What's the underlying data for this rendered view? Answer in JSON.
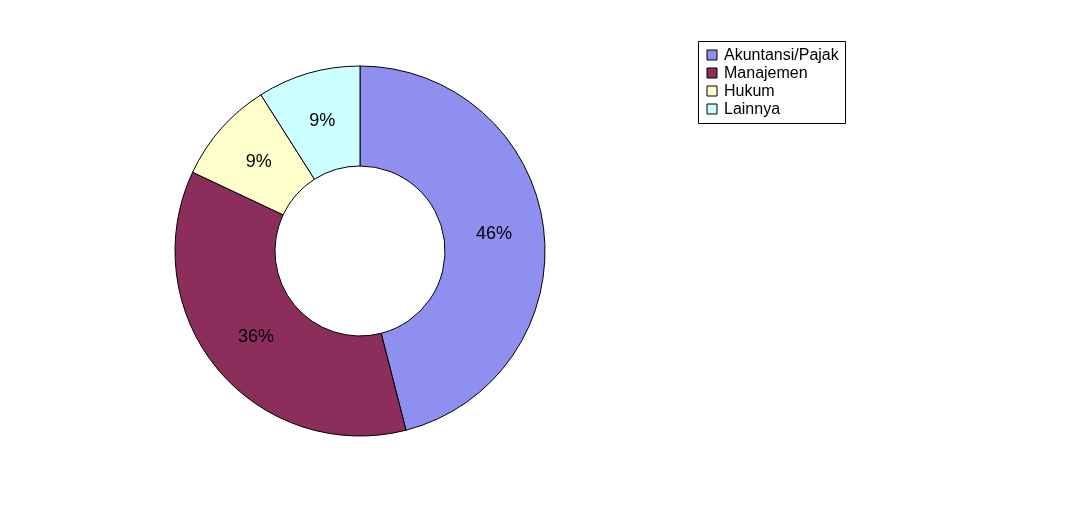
{
  "chart_data": {
    "type": "donut",
    "categories": [
      "Akuntansi/Pajak",
      "Manajemen",
      "Hukum",
      "Lainnya"
    ],
    "values": [
      46,
      36,
      9,
      9
    ],
    "colors": [
      "#8f8fef",
      "#8b2e5c",
      "#ffffcc",
      "#ccffff"
    ],
    "value_labels": [
      "46%",
      "36%",
      "9%",
      "9%"
    ],
    "legend": "right"
  }
}
